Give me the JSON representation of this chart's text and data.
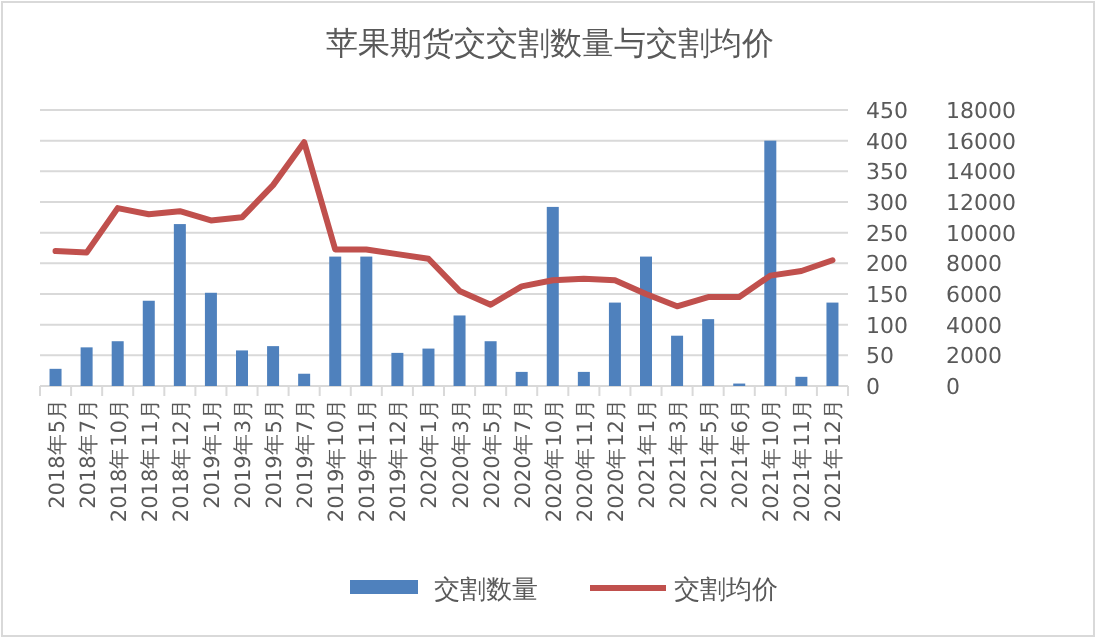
{
  "chart_data": {
    "type": "bar",
    "title": "苹果期货交交割数量与交割均价",
    "categories": [
      "2018年5月",
      "2018年7月",
      "2018年10月",
      "2018年11月",
      "2018年12月",
      "2019年1月",
      "2019年3月",
      "2019年5月",
      "2019年7月",
      "2019年10月",
      "2019年11月",
      "2019年12月",
      "2020年1月",
      "2020年3月",
      "2020年5月",
      "2020年7月",
      "2020年10月",
      "2020年11月",
      "2020年12月",
      "2021年1月",
      "2021年3月",
      "2021年5月",
      "2021年6月",
      "2021年10月",
      "2021年11月",
      "2021年12月"
    ],
    "series": [
      {
        "name": "交割数量",
        "color": "#4f81bd",
        "values": [
          28,
          63,
          73,
          139,
          264,
          152,
          58,
          65,
          20,
          211,
          211,
          54,
          61,
          115,
          73,
          23,
          292,
          23,
          136,
          211,
          82,
          109,
          4,
          400,
          15,
          136
        ]
      },
      {
        "name": "交割均价",
        "type": "line",
        "axis": "y2",
        "color": "#c0504d",
        "values": [
          8800,
          8700,
          11600,
          11200,
          11400,
          10800,
          11000,
          13100,
          15900,
          8900,
          8900,
          8600,
          8300,
          6200,
          5300,
          6500,
          6900,
          7000,
          6900,
          6000,
          5200,
          5800,
          5800,
          7200,
          7500,
          8200
        ]
      }
    ],
    "ylim": [
      0,
      450
    ],
    "yticks": [
      0,
      50,
      100,
      150,
      200,
      250,
      300,
      350,
      400,
      450
    ],
    "y2lim": [
      0,
      18000
    ],
    "y2ticks": [
      0,
      2000,
      4000,
      6000,
      8000,
      10000,
      12000,
      14000,
      16000,
      18000
    ],
    "grid": "y",
    "legend": "bottom"
  }
}
